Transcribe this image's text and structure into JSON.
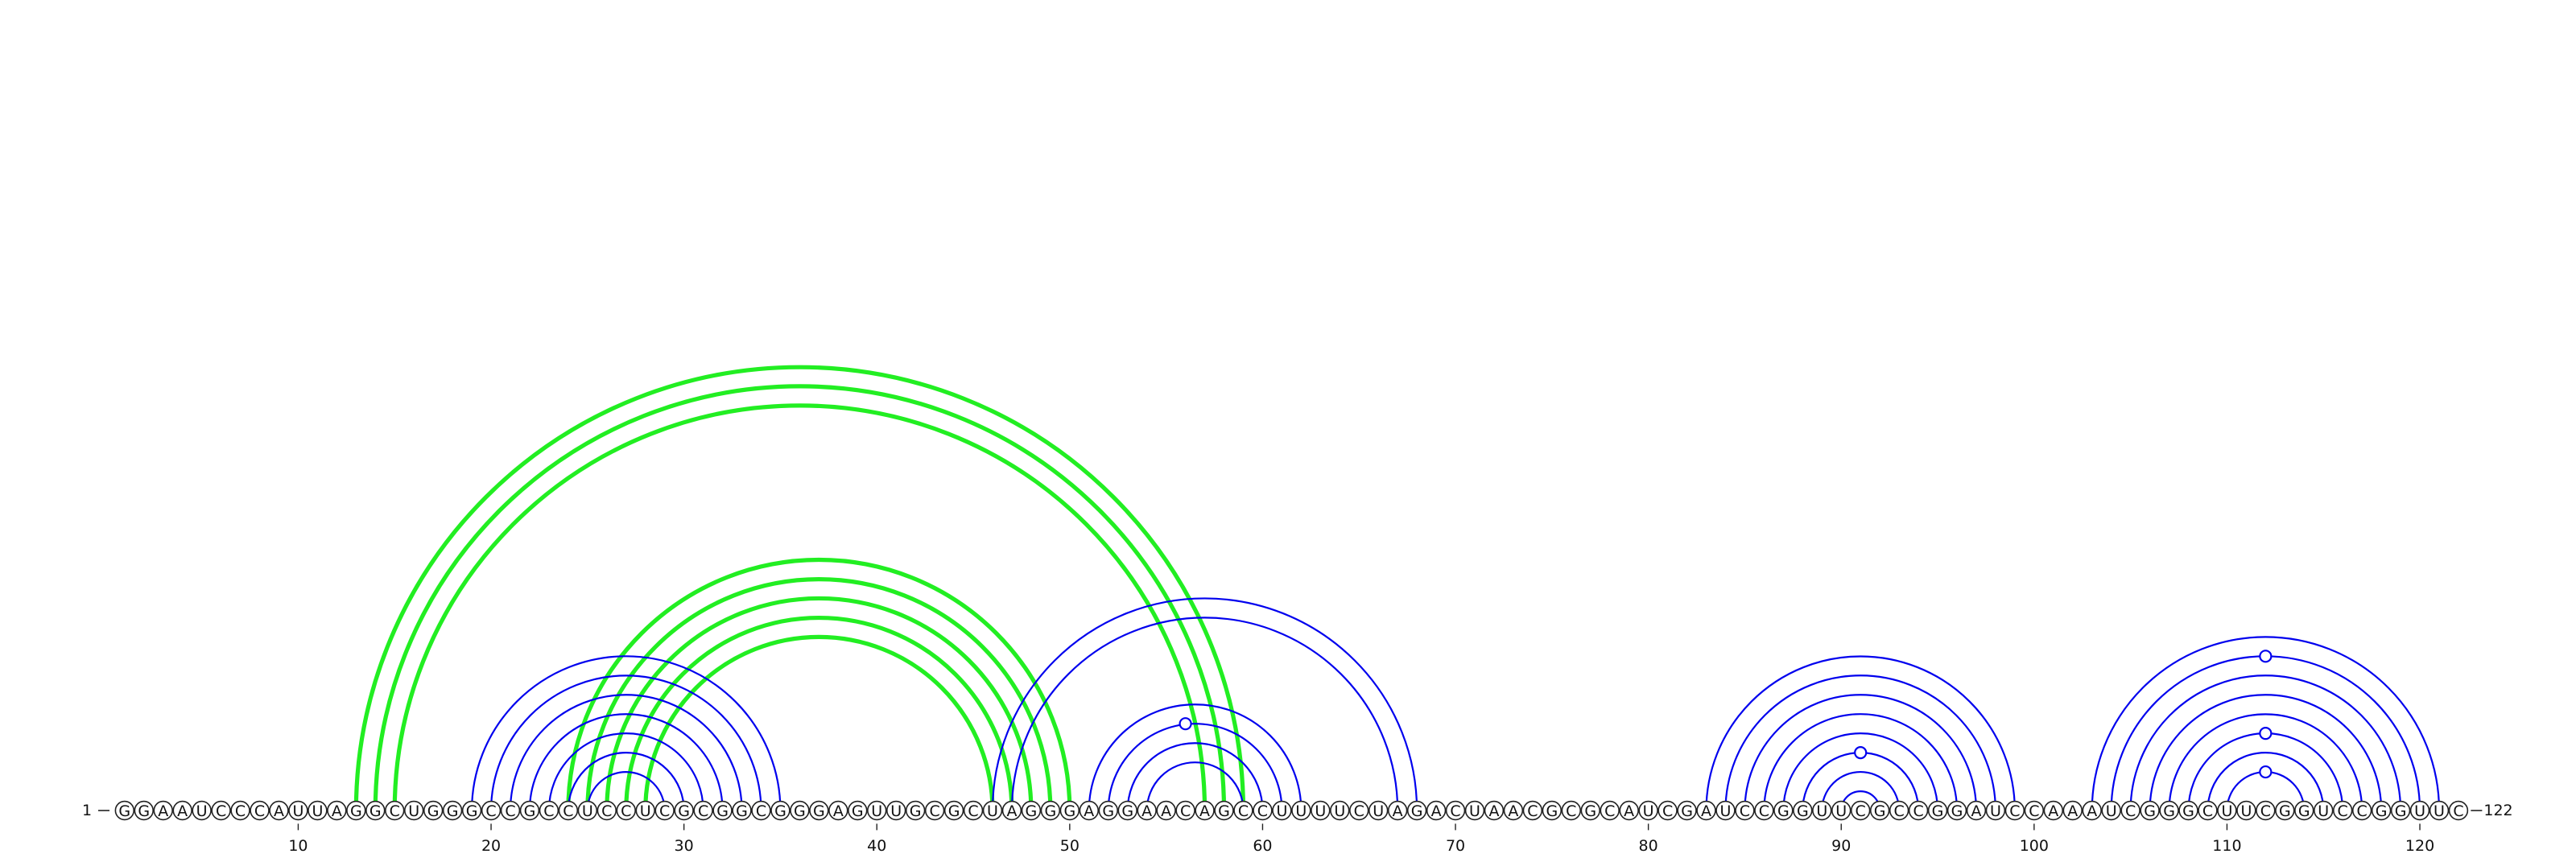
{
  "sequence": "GGAAUCCCAUUAGGCUGGGCCGCCUCCUCGCGGCGGGAGUUGCGCUAGGGAGGAACAGCCUUUUCUAGACUAACGCGCAUCGAUCCGGUUCGCCGGAUCCAAAUCGGGCUUCGGUCCGGUUC",
  "start_label": "1",
  "end_label": "122",
  "ticks": [
    10,
    20,
    30,
    40,
    50,
    60,
    70,
    80,
    90,
    100,
    110,
    120
  ],
  "colors": {
    "blue": "#0000ee",
    "green": "#22ee22"
  },
  "pairs_blue": [
    [
      19,
      35
    ],
    [
      20,
      34
    ],
    [
      21,
      33
    ],
    [
      22,
      32
    ],
    [
      23,
      31
    ],
    [
      24,
      30
    ],
    [
      25,
      29
    ],
    [
      46,
      68
    ],
    [
      47,
      67
    ],
    [
      51,
      62
    ],
    [
      52,
      61
    ],
    [
      53,
      60
    ],
    [
      54,
      59
    ],
    [
      83,
      99
    ],
    [
      84,
      98
    ],
    [
      85,
      97
    ],
    [
      86,
      96
    ],
    [
      87,
      95
    ],
    [
      88,
      94
    ],
    [
      89,
      93
    ],
    [
      90,
      92
    ],
    [
      103,
      121
    ],
    [
      104,
      120
    ],
    [
      105,
      119
    ],
    [
      106,
      118
    ],
    [
      107,
      117
    ],
    [
      108,
      116
    ],
    [
      109,
      115
    ],
    [
      110,
      114
    ]
  ],
  "pairs_green": [
    [
      13,
      59
    ],
    [
      14,
      58
    ],
    [
      15,
      57
    ],
    [
      24,
      50
    ],
    [
      25,
      49
    ],
    [
      26,
      48
    ],
    [
      27,
      47
    ],
    [
      28,
      46
    ]
  ],
  "gu_marker_positions": [
    56,
    91,
    112,
    112,
    112
  ]
}
